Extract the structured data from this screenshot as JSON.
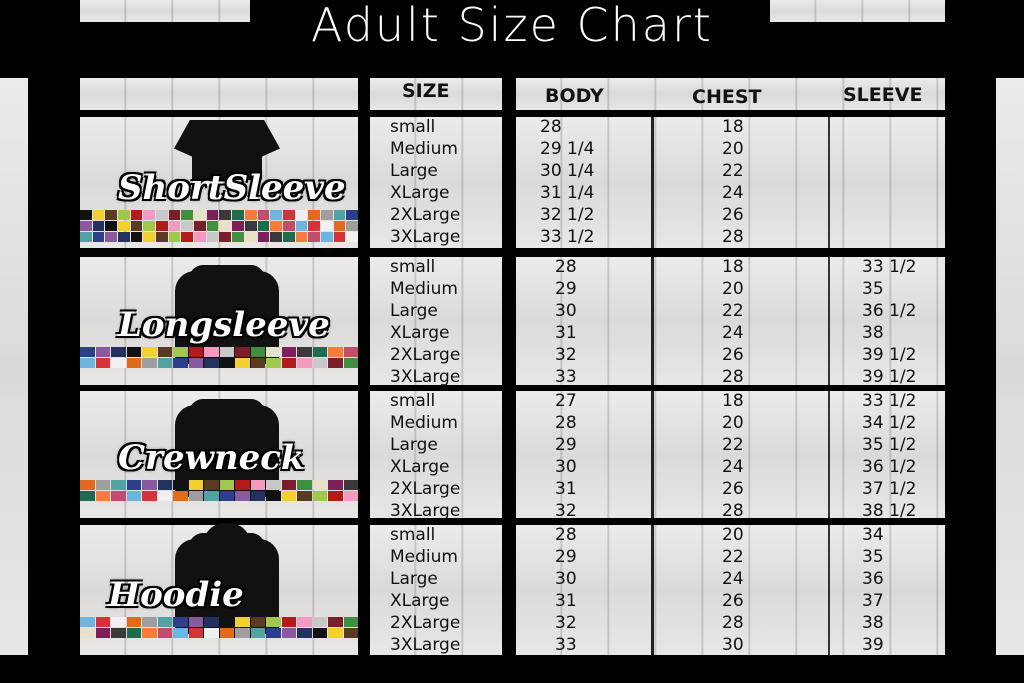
{
  "title": "Adult Size Chart",
  "headers": {
    "size": "SIZE",
    "body": "BODY",
    "chest": "CHEST",
    "sleeve": "SLEEVE"
  },
  "swatch_colors": [
    "#111111",
    "#7a1e2b",
    "#c04d6a",
    "#2b3f8a",
    "#b31b1b",
    "#3a3a3a",
    "#e26a1c",
    "#f2d12e",
    "#3f8f3f",
    "#6bb5e0",
    "#8a5a9e",
    "#f29ac1",
    "#1f6b4e",
    "#9e9e9e",
    "#5a3a22",
    "#e8e0c8",
    "#d6323a",
    "#22315e",
    "#c8c8c8",
    "#ff7a3a",
    "#4fa3a0",
    "#a0c84a",
    "#7d1f5a",
    "#f0f0f0"
  ],
  "products": [
    {
      "name": "ShortSleeve",
      "sleeve_type": "short",
      "rows": [
        {
          "size": "small",
          "body": "28",
          "chest": "18",
          "sleeve": ""
        },
        {
          "size": "Medium",
          "body": "29 1/4",
          "chest": "20",
          "sleeve": ""
        },
        {
          "size": "Large",
          "body": "30 1/4",
          "chest": "22",
          "sleeve": ""
        },
        {
          "size": "XLarge",
          "body": "31 1/4",
          "chest": "24",
          "sleeve": ""
        },
        {
          "size": "2XLarge",
          "body": "32 1/2",
          "chest": "26",
          "sleeve": ""
        },
        {
          "size": "3XLarge",
          "body": "33 1/2",
          "chest": "28",
          "sleeve": ""
        }
      ]
    },
    {
      "name": "Longsleeve",
      "sleeve_type": "long",
      "rows": [
        {
          "size": "small",
          "body": "28",
          "chest": "18",
          "sleeve": "33 1/2"
        },
        {
          "size": "Medium",
          "body": "29",
          "chest": "20",
          "sleeve": "35"
        },
        {
          "size": "Large",
          "body": "30",
          "chest": "22",
          "sleeve": "36 1/2"
        },
        {
          "size": "XLarge",
          "body": "31",
          "chest": "24",
          "sleeve": "38"
        },
        {
          "size": "2XLarge",
          "body": "32",
          "chest": "26",
          "sleeve": "39 1/2"
        },
        {
          "size": "3XLarge",
          "body": "33",
          "chest": "28",
          "sleeve": "39 1/2"
        }
      ]
    },
    {
      "name": "Crewneck",
      "sleeve_type": "long",
      "rows": [
        {
          "size": "small",
          "body": "27",
          "chest": "18",
          "sleeve": "33 1/2"
        },
        {
          "size": "Medium",
          "body": "28",
          "chest": "20",
          "sleeve": "34 1/2"
        },
        {
          "size": "Large",
          "body": "29",
          "chest": "22",
          "sleeve": "35 1/2"
        },
        {
          "size": "XLarge",
          "body": "30",
          "chest": "24",
          "sleeve": "36 1/2"
        },
        {
          "size": "2XLarge",
          "body": "31",
          "chest": "26",
          "sleeve": "37 1/2"
        },
        {
          "size": "3XLarge",
          "body": "32",
          "chest": "28",
          "sleeve": "38 1/2"
        }
      ]
    },
    {
      "name": "Hoodie",
      "sleeve_type": "hoodie",
      "rows": [
        {
          "size": "small",
          "body": "28",
          "chest": "20",
          "sleeve": "34"
        },
        {
          "size": "Medium",
          "body": "29",
          "chest": "22",
          "sleeve": "35"
        },
        {
          "size": "Large",
          "body": "30",
          "chest": "24",
          "sleeve": "36"
        },
        {
          "size": "XLarge",
          "body": "31",
          "chest": "26",
          "sleeve": "37"
        },
        {
          "size": "2XLarge",
          "body": "32",
          "chest": "28",
          "sleeve": "38"
        },
        {
          "size": "3XLarge",
          "body": "33",
          "chest": "30",
          "sleeve": "39"
        }
      ]
    }
  ]
}
